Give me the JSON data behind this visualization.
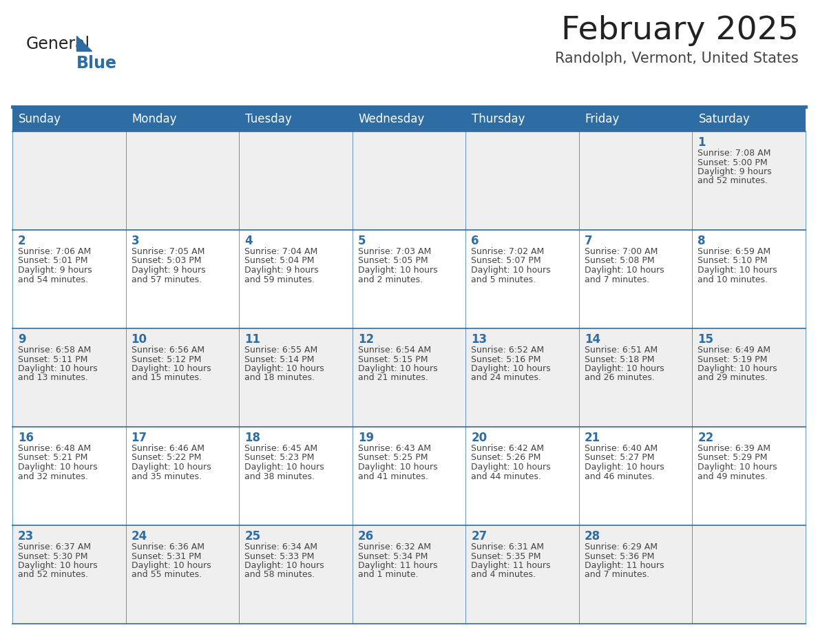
{
  "title": "February 2025",
  "subtitle": "Randolph, Vermont, United States",
  "header_bg": "#2E6DA4",
  "header_text": "#FFFFFF",
  "cell_bg_odd": "#EFEFEF",
  "cell_bg_even": "#FFFFFF",
  "border_color": "#2E6DA4",
  "text_color": "#444444",
  "day_number_color": "#2E6DA4",
  "day_headers": [
    "Sunday",
    "Monday",
    "Tuesday",
    "Wednesday",
    "Thursday",
    "Friday",
    "Saturday"
  ],
  "calendar_data": [
    [
      null,
      null,
      null,
      null,
      null,
      null,
      {
        "day": 1,
        "sunrise": "7:08 AM",
        "sunset": "5:00 PM",
        "daylight": "9 hours\nand 52 minutes."
      }
    ],
    [
      {
        "day": 2,
        "sunrise": "7:06 AM",
        "sunset": "5:01 PM",
        "daylight": "9 hours\nand 54 minutes."
      },
      {
        "day": 3,
        "sunrise": "7:05 AM",
        "sunset": "5:03 PM",
        "daylight": "9 hours\nand 57 minutes."
      },
      {
        "day": 4,
        "sunrise": "7:04 AM",
        "sunset": "5:04 PM",
        "daylight": "9 hours\nand 59 minutes."
      },
      {
        "day": 5,
        "sunrise": "7:03 AM",
        "sunset": "5:05 PM",
        "daylight": "10 hours\nand 2 minutes."
      },
      {
        "day": 6,
        "sunrise": "7:02 AM",
        "sunset": "5:07 PM",
        "daylight": "10 hours\nand 5 minutes."
      },
      {
        "day": 7,
        "sunrise": "7:00 AM",
        "sunset": "5:08 PM",
        "daylight": "10 hours\nand 7 minutes."
      },
      {
        "day": 8,
        "sunrise": "6:59 AM",
        "sunset": "5:10 PM",
        "daylight": "10 hours\nand 10 minutes."
      }
    ],
    [
      {
        "day": 9,
        "sunrise": "6:58 AM",
        "sunset": "5:11 PM",
        "daylight": "10 hours\nand 13 minutes."
      },
      {
        "day": 10,
        "sunrise": "6:56 AM",
        "sunset": "5:12 PM",
        "daylight": "10 hours\nand 15 minutes."
      },
      {
        "day": 11,
        "sunrise": "6:55 AM",
        "sunset": "5:14 PM",
        "daylight": "10 hours\nand 18 minutes."
      },
      {
        "day": 12,
        "sunrise": "6:54 AM",
        "sunset": "5:15 PM",
        "daylight": "10 hours\nand 21 minutes."
      },
      {
        "day": 13,
        "sunrise": "6:52 AM",
        "sunset": "5:16 PM",
        "daylight": "10 hours\nand 24 minutes."
      },
      {
        "day": 14,
        "sunrise": "6:51 AM",
        "sunset": "5:18 PM",
        "daylight": "10 hours\nand 26 minutes."
      },
      {
        "day": 15,
        "sunrise": "6:49 AM",
        "sunset": "5:19 PM",
        "daylight": "10 hours\nand 29 minutes."
      }
    ],
    [
      {
        "day": 16,
        "sunrise": "6:48 AM",
        "sunset": "5:21 PM",
        "daylight": "10 hours\nand 32 minutes."
      },
      {
        "day": 17,
        "sunrise": "6:46 AM",
        "sunset": "5:22 PM",
        "daylight": "10 hours\nand 35 minutes."
      },
      {
        "day": 18,
        "sunrise": "6:45 AM",
        "sunset": "5:23 PM",
        "daylight": "10 hours\nand 38 minutes."
      },
      {
        "day": 19,
        "sunrise": "6:43 AM",
        "sunset": "5:25 PM",
        "daylight": "10 hours\nand 41 minutes."
      },
      {
        "day": 20,
        "sunrise": "6:42 AM",
        "sunset": "5:26 PM",
        "daylight": "10 hours\nand 44 minutes."
      },
      {
        "day": 21,
        "sunrise": "6:40 AM",
        "sunset": "5:27 PM",
        "daylight": "10 hours\nand 46 minutes."
      },
      {
        "day": 22,
        "sunrise": "6:39 AM",
        "sunset": "5:29 PM",
        "daylight": "10 hours\nand 49 minutes."
      }
    ],
    [
      {
        "day": 23,
        "sunrise": "6:37 AM",
        "sunset": "5:30 PM",
        "daylight": "10 hours\nand 52 minutes."
      },
      {
        "day": 24,
        "sunrise": "6:36 AM",
        "sunset": "5:31 PM",
        "daylight": "10 hours\nand 55 minutes."
      },
      {
        "day": 25,
        "sunrise": "6:34 AM",
        "sunset": "5:33 PM",
        "daylight": "10 hours\nand 58 minutes."
      },
      {
        "day": 26,
        "sunrise": "6:32 AM",
        "sunset": "5:34 PM",
        "daylight": "11 hours\nand 1 minute."
      },
      {
        "day": 27,
        "sunrise": "6:31 AM",
        "sunset": "5:35 PM",
        "daylight": "11 hours\nand 4 minutes."
      },
      {
        "day": 28,
        "sunrise": "6:29 AM",
        "sunset": "5:36 PM",
        "daylight": "11 hours\nand 7 minutes."
      },
      null
    ]
  ],
  "logo_color_general": "#222222",
  "logo_color_blue": "#2E6DA4",
  "logo_triangle_color": "#2E6DA4"
}
